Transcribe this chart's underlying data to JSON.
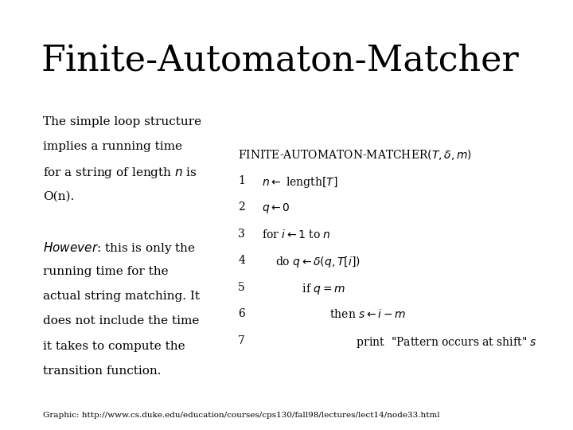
{
  "title": "Finite-Automaton-Matcher",
  "background_color": "#ffffff",
  "title_fontsize": 32,
  "title_font": "serif",
  "left_text_lines": [
    "The simple loop structure",
    "implies a running time",
    "for a string of length $n$ is",
    "O(n).",
    "",
    "$\\it{However}$: this is only the",
    "running time for the",
    "actual string matching. It",
    "does not include the time",
    "it takes to compute the",
    "transition function."
  ],
  "footer": "Graphic: http://www.cs.duke.edu/education/courses/cps130/fall98/lectures/lect14/node33.html",
  "algo_header": "FINITE-AUTOMATON-MATCHER$(T, \\delta, m)$",
  "algo_lines": [
    [
      "1",
      "$n \\leftarrow$ length$[T]$"
    ],
    [
      "2",
      "$q \\leftarrow 0$"
    ],
    [
      "3",
      "for $i \\leftarrow 1$ to $n$"
    ],
    [
      "4",
      "do $q \\leftarrow \\delta(q, T[i])$"
    ],
    [
      "5",
      "    if $q = m$"
    ],
    [
      "6",
      "        then $s \\leftarrow i - m$"
    ],
    [
      "7",
      "            print  \"Pattern occurs at shift\" $s$"
    ]
  ]
}
